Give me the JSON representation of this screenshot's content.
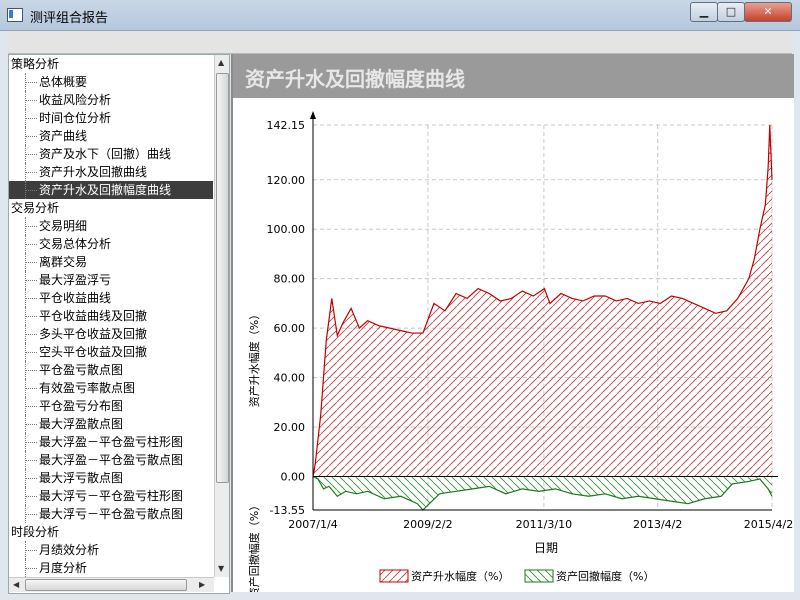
{
  "window": {
    "title": "测评组合报告",
    "min": "▁",
    "max": "□",
    "close": "✕"
  },
  "tree": {
    "groups": [
      {
        "label": "策略分析",
        "items": [
          "总体概要",
          "收益风险分析",
          "时间仓位分析",
          "资产曲线",
          "资产及水下（回撤）曲线",
          "资产升水及回撤曲线",
          "资产升水及回撤幅度曲线"
        ]
      },
      {
        "label": "交易分析",
        "items": [
          "交易明细",
          "交易总体分析",
          "离群交易",
          "最大浮盈浮亏",
          "平仓收益曲线",
          "平仓收益曲线及回撤",
          "多头平仓收益及回撤",
          "空头平仓收益及回撤",
          "平仓盈亏散点图",
          "有效盈亏率散点图",
          "平仓盈亏分布图",
          "最大浮盈散点图",
          "最大浮盈－平仓盈亏柱形图",
          "最大浮盈－平仓盈亏散点图",
          "最大浮亏散点图",
          "最大浮亏－平仓盈亏柱形图",
          "最大浮亏－平仓盈亏散点图"
        ]
      },
      {
        "label": "时段分析",
        "items": [
          "月绩效分析",
          "月度分析"
        ]
      }
    ],
    "selected": "资产升水及回撤幅度曲线"
  },
  "chart_panel": {
    "title": "资产升水及回撤幅度曲线"
  },
  "chart_data": {
    "type": "area",
    "ylabel_top": "资产升水幅度（%）",
    "ylabel_bottom": "资产回撤幅度（%）",
    "xlabel": "日期",
    "y_ticks": [
      "142.15",
      "120.00",
      "100.00",
      "80.00",
      "60.00",
      "40.00",
      "20.00",
      "0.00",
      "-13.55"
    ],
    "y_tick_values": [
      142.15,
      120,
      100,
      80,
      60,
      40,
      20,
      0,
      -13.55
    ],
    "ylim": [
      -13.55,
      142.15
    ],
    "x_ticks": [
      "2007/1/4",
      "2009/2/2",
      "2011/3/10",
      "2013/4/2",
      "2015/4/28"
    ],
    "x_tick_values": [
      2007.01,
      2009.09,
      2011.19,
      2013.25,
      2015.32
    ],
    "xlim": [
      2007.01,
      2015.32
    ],
    "legend": [
      "资产升水幅度（%）",
      "资产回撤幅度（%）"
    ],
    "grid": true,
    "series": [
      {
        "name": "资产升水幅度（%）",
        "color": "#c00000",
        "x": [
          2007.01,
          2007.05,
          2007.15,
          2007.25,
          2007.35,
          2007.45,
          2007.55,
          2007.7,
          2007.85,
          2008.0,
          2008.2,
          2008.4,
          2008.6,
          2008.8,
          2009.0,
          2009.2,
          2009.4,
          2009.6,
          2009.8,
          2010.0,
          2010.2,
          2010.4,
          2010.6,
          2010.8,
          2011.0,
          2011.2,
          2011.3,
          2011.5,
          2011.7,
          2011.9,
          2012.1,
          2012.3,
          2012.5,
          2012.7,
          2012.9,
          2013.1,
          2013.3,
          2013.5,
          2013.7,
          2013.9,
          2014.1,
          2014.3,
          2014.5,
          2014.7,
          2014.9,
          2015.0,
          2015.1,
          2015.2,
          2015.25,
          2015.28,
          2015.32
        ],
        "values": [
          0,
          5,
          25,
          55,
          72,
          57,
          62,
          68,
          60,
          63,
          61,
          60,
          59,
          58,
          58,
          70,
          67,
          74,
          72,
          76,
          74,
          71,
          72,
          75,
          73,
          76,
          70,
          74,
          72,
          71,
          73,
          73,
          71,
          72,
          70,
          71,
          70,
          73,
          72,
          70,
          68,
          66,
          67,
          72,
          80,
          88,
          100,
          110,
          125,
          142.15,
          120
        ]
      },
      {
        "name": "资产回撤幅度（%）",
        "color": "#1a7a1a",
        "x": [
          2007.01,
          2007.1,
          2007.2,
          2007.3,
          2007.45,
          2007.6,
          2007.8,
          2008.0,
          2008.3,
          2008.6,
          2008.9,
          2009.0,
          2009.3,
          2009.6,
          2009.9,
          2010.2,
          2010.5,
          2010.8,
          2011.1,
          2011.4,
          2011.7,
          2012.0,
          2012.3,
          2012.6,
          2012.9,
          2013.2,
          2013.5,
          2013.8,
          2014.1,
          2014.4,
          2014.6,
          2014.9,
          2015.1,
          2015.25,
          2015.32
        ],
        "values": [
          0,
          -1,
          -5,
          -4,
          -8,
          -6,
          -7,
          -6,
          -9,
          -8,
          -11,
          -13.55,
          -7,
          -6,
          -5,
          -4,
          -7,
          -5,
          -6,
          -5,
          -7,
          -8,
          -7,
          -9,
          -8,
          -9,
          -10,
          -11,
          -9,
          -8,
          -3,
          -2,
          -1,
          -5,
          -8
        ]
      }
    ]
  }
}
